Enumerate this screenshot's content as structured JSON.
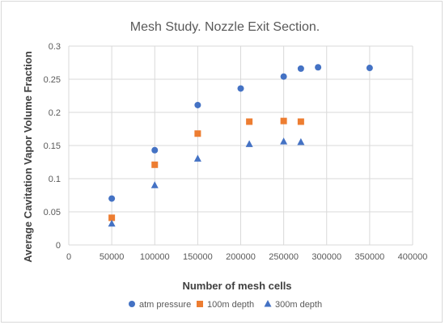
{
  "chart_data": {
    "type": "scatter",
    "title": "Mesh Study. Nozzle Exit Section.",
    "xlabel": "Number of mesh cells",
    "ylabel": "Average Cavitation Vapor Volume Fraction",
    "xlim": [
      0,
      400000
    ],
    "ylim": [
      0,
      0.3
    ],
    "x_ticks": [
      "0",
      "50000",
      "100000",
      "150000",
      "200000",
      "250000",
      "300000",
      "350000",
      "400000"
    ],
    "y_ticks": [
      "0",
      "0.05",
      "0.1",
      "0.15",
      "0.2",
      "0.25",
      "0.3"
    ],
    "grid": "vertical and horizontal",
    "legend_position": "bottom",
    "series": [
      {
        "name": "atm pressure",
        "marker": "circle",
        "color": "#4472C4",
        "points": [
          {
            "x": 50000,
            "y": 0.07
          },
          {
            "x": 100000,
            "y": 0.143
          },
          {
            "x": 150000,
            "y": 0.211
          },
          {
            "x": 200000,
            "y": 0.236
          },
          {
            "x": 250000,
            "y": 0.254
          },
          {
            "x": 270000,
            "y": 0.266
          },
          {
            "x": 290000,
            "y": 0.268
          },
          {
            "x": 350000,
            "y": 0.267
          }
        ]
      },
      {
        "name": "100m depth",
        "marker": "square",
        "color": "#ED7D31",
        "points": [
          {
            "x": 50000,
            "y": 0.041
          },
          {
            "x": 100000,
            "y": 0.121
          },
          {
            "x": 150000,
            "y": 0.168
          },
          {
            "x": 210000,
            "y": 0.186
          },
          {
            "x": 250000,
            "y": 0.187
          },
          {
            "x": 270000,
            "y": 0.186
          }
        ]
      },
      {
        "name": "300m depth",
        "marker": "triangle",
        "color": "#4472C4",
        "points": [
          {
            "x": 50000,
            "y": 0.032
          },
          {
            "x": 100000,
            "y": 0.09
          },
          {
            "x": 150000,
            "y": 0.13
          },
          {
            "x": 210000,
            "y": 0.152
          },
          {
            "x": 250000,
            "y": 0.156
          },
          {
            "x": 270000,
            "y": 0.155
          }
        ]
      }
    ]
  }
}
